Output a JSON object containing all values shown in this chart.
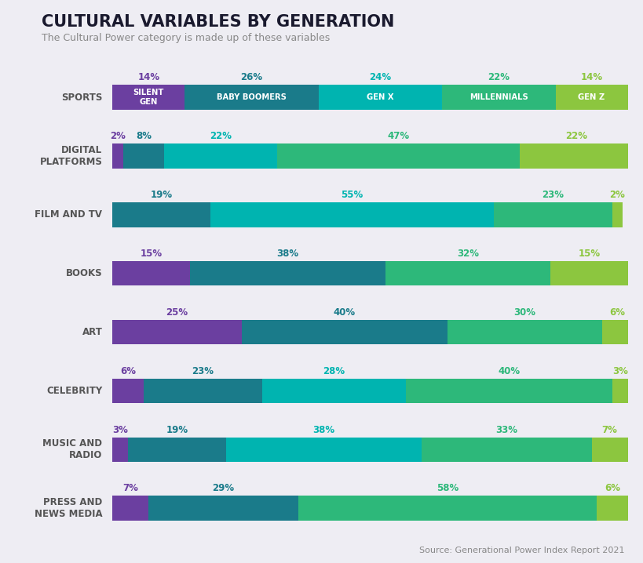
{
  "title": "CULTURAL VARIABLES BY GENERATION",
  "subtitle": "The Cultural Power category is made up of these variables",
  "source": "Source: Generational Power Index Report 2021",
  "background_color": "#eeedf3",
  "categories": [
    "SPORTS",
    "DIGITAL\nPLATFORMS",
    "FILM AND TV",
    "BOOKS",
    "ART",
    "CELEBRITY",
    "MUSIC AND\nRADIO",
    "PRESS AND\nNEWS MEDIA"
  ],
  "generations": [
    "SILENT GEN",
    "BABY BOOMERS",
    "GEN X",
    "MILLENNIALS",
    "GEN Z"
  ],
  "colors": [
    "#6b3fa0",
    "#1a7b8a",
    "#00b4b0",
    "#2db87a",
    "#8cc63f"
  ],
  "label_colors_pct": [
    "#6b3fa0",
    "#1a7b8a",
    "#00b4b0",
    "#2db87a",
    "#8cc63f"
  ],
  "rows": [
    [
      14,
      26,
      24,
      22,
      14
    ],
    [
      2,
      8,
      22,
      47,
      22
    ],
    [
      0,
      19,
      55,
      23,
      2
    ],
    [
      15,
      38,
      0,
      32,
      15
    ],
    [
      25,
      40,
      0,
      30,
      6
    ],
    [
      6,
      23,
      28,
      40,
      3
    ],
    [
      3,
      19,
      38,
      33,
      7
    ],
    [
      7,
      29,
      0,
      58,
      6
    ]
  ],
  "gen_labels": [
    "SILENT\nGEN",
    "BABY BOOMERS",
    "GEN X",
    "MILLENNIALS",
    "GEN Z"
  ]
}
